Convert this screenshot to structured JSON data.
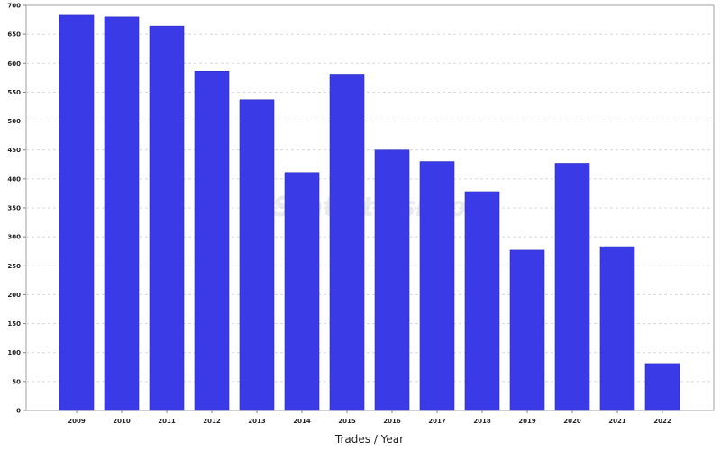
{
  "chart_data": {
    "type": "bar",
    "xlabel": "Trades / Year",
    "ylabel": "",
    "title": "",
    "ylim": [
      0,
      700
    ],
    "y_ticks": [
      0,
      50,
      100,
      150,
      200,
      250,
      300,
      350,
      400,
      450,
      500,
      550,
      600,
      650,
      700
    ],
    "y_tick_labels": [
      "0",
      "50",
      "100",
      "150",
      "200",
      "250",
      "300",
      "350",
      "400",
      "450",
      "500",
      "550",
      "600",
      "650",
      "700"
    ],
    "categories": [
      "2009",
      "2010",
      "2011",
      "2012",
      "2013",
      "2014",
      "2015",
      "2016",
      "2017",
      "2018",
      "2019",
      "2020",
      "2021",
      "2022"
    ],
    "values": [
      683,
      680,
      664,
      586,
      537,
      411,
      581,
      450,
      430,
      378,
      277,
      427,
      283,
      81
    ],
    "bar_color": "#3a3ae6",
    "grid": true,
    "legend": "none",
    "watermark": "StatisticsPro"
  }
}
